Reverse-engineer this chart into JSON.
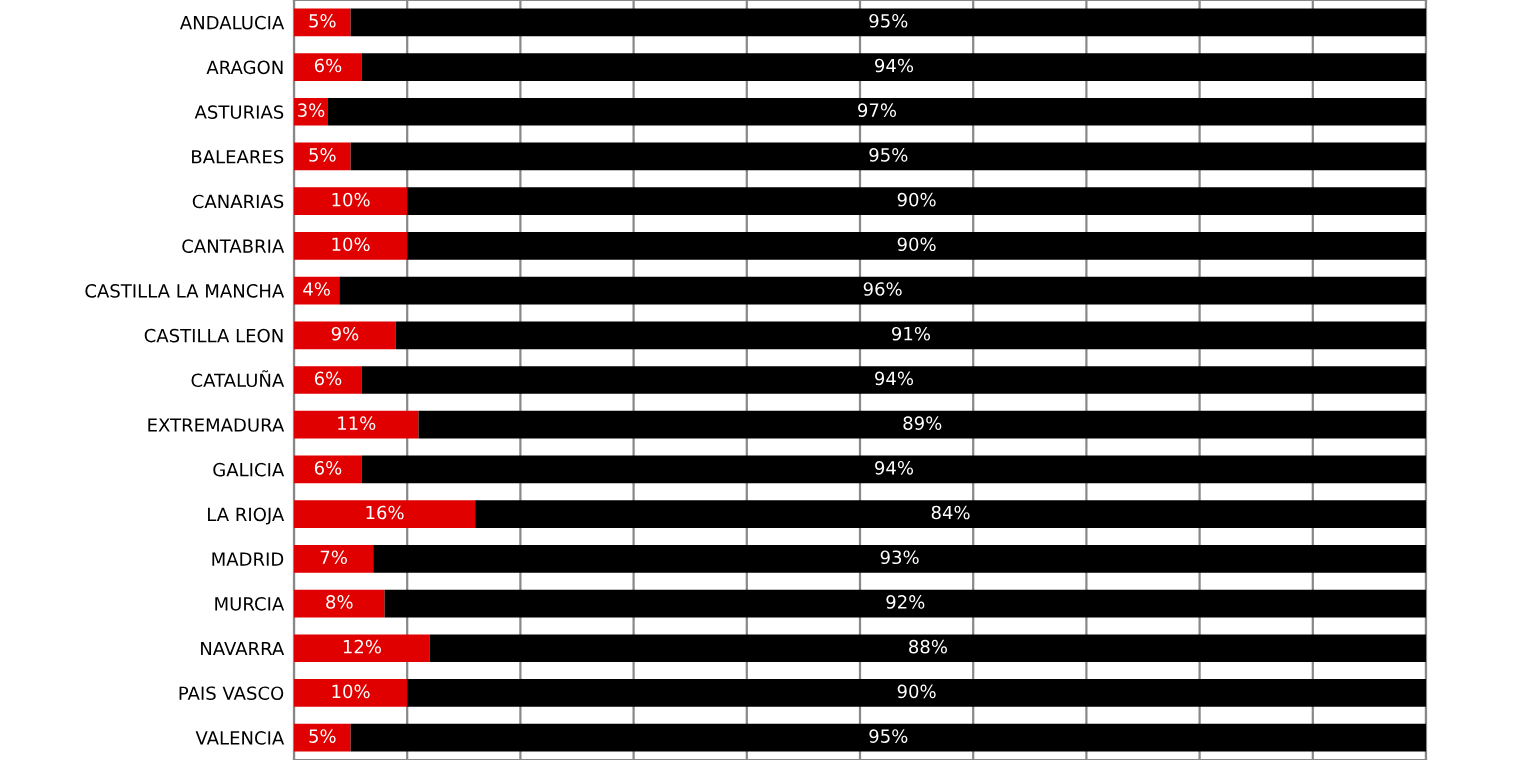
{
  "chart_data": {
    "type": "bar",
    "orientation": "horizontal",
    "stacked": true,
    "categories": [
      "ANDALUCIA",
      "ARAGON",
      "ASTURIAS",
      "BALEARES",
      "CANARIAS",
      "CANTABRIA",
      "CASTILLA LA MANCHA",
      "CASTILLA LEON",
      "CATALUÑA",
      "EXTREMADURA",
      "GALICIA",
      "LA RIOJA",
      "MADRID",
      "MURCIA",
      "NAVARRA",
      "PAIS VASCO",
      "VALENCIA"
    ],
    "series": [
      {
        "color": "#e00000",
        "values": [
          5,
          6,
          3,
          5,
          10,
          10,
          4,
          9,
          6,
          11,
          6,
          16,
          7,
          8,
          12,
          10,
          5
        ],
        "value_labels": [
          "5%",
          "6%",
          "3%",
          "5%",
          "10%",
          "10%",
          "4%",
          "9%",
          "6%",
          "11%",
          "6%",
          "16%",
          "7%",
          "8%",
          "12%",
          "10%",
          "5%"
        ]
      },
      {
        "color": "#000000",
        "values": [
          95,
          94,
          97,
          95,
          90,
          90,
          96,
          91,
          94,
          89,
          94,
          84,
          93,
          92,
          88,
          90,
          95
        ],
        "value_labels": [
          "95%",
          "94%",
          "97%",
          "95%",
          "90%",
          "90%",
          "96%",
          "91%",
          "94%",
          "89%",
          "94%",
          "84%",
          "93%",
          "92%",
          "88%",
          "90%",
          "95%"
        ]
      }
    ],
    "xlim": [
      0,
      100
    ],
    "xticks": [
      {
        "value": 0,
        "label": null
      },
      {
        "value": 10,
        "label": null
      },
      {
        "value": 20,
        "label": null
      },
      {
        "value": 30,
        "label": null
      },
      {
        "value": 40,
        "label": null
      },
      {
        "value": 50,
        "label": null
      },
      {
        "value": 60,
        "label": null
      },
      {
        "value": 70,
        "label": null
      },
      {
        "value": 80,
        "label": null
      },
      {
        "value": 90,
        "label": null
      },
      {
        "value": 100,
        "label": null
      }
    ],
    "grid": "x",
    "tick_labels": "y",
    "legend": false
  }
}
